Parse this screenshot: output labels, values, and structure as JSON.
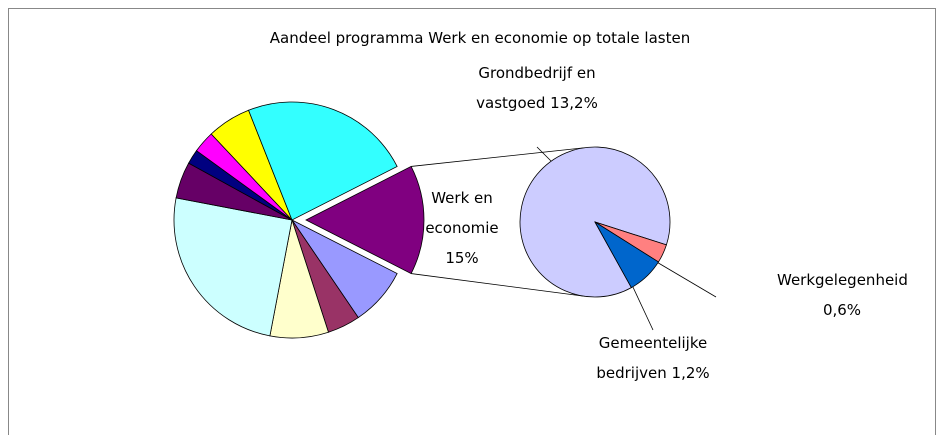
{
  "chart_data": {
    "type": "pie-of-pie",
    "title": "Aandeel programma Werk en economie op totale lasten",
    "main": {
      "categories": [
        "Werk en economie",
        null,
        null,
        null,
        null,
        null,
        null,
        null,
        null,
        null
      ],
      "values": [
        15,
        8,
        4.5,
        8,
        25,
        5,
        2,
        3,
        6,
        23.5
      ],
      "value_labels": [
        "15%",
        null,
        null,
        null,
        null,
        null,
        null,
        null,
        null,
        null
      ],
      "colors": [
        "#800080",
        "#9999ff",
        "#993366",
        "#ffffcc",
        "#ccffff",
        "#660066",
        "#000080",
        "#ff00ff",
        "#ffff00",
        "#33ffff"
      ]
    },
    "sub": {
      "categories": [
        "Grondbedrijf en vastgoed",
        "Werkgelegenheid",
        "Gemeentelijke bedrijven"
      ],
      "values": [
        13.2,
        0.6,
        1.2
      ],
      "value_labels": [
        "13,2%",
        "0,6%",
        "1,2%"
      ],
      "colors": [
        "#ccccff",
        "#ff8080",
        "#0066cc"
      ]
    }
  }
}
